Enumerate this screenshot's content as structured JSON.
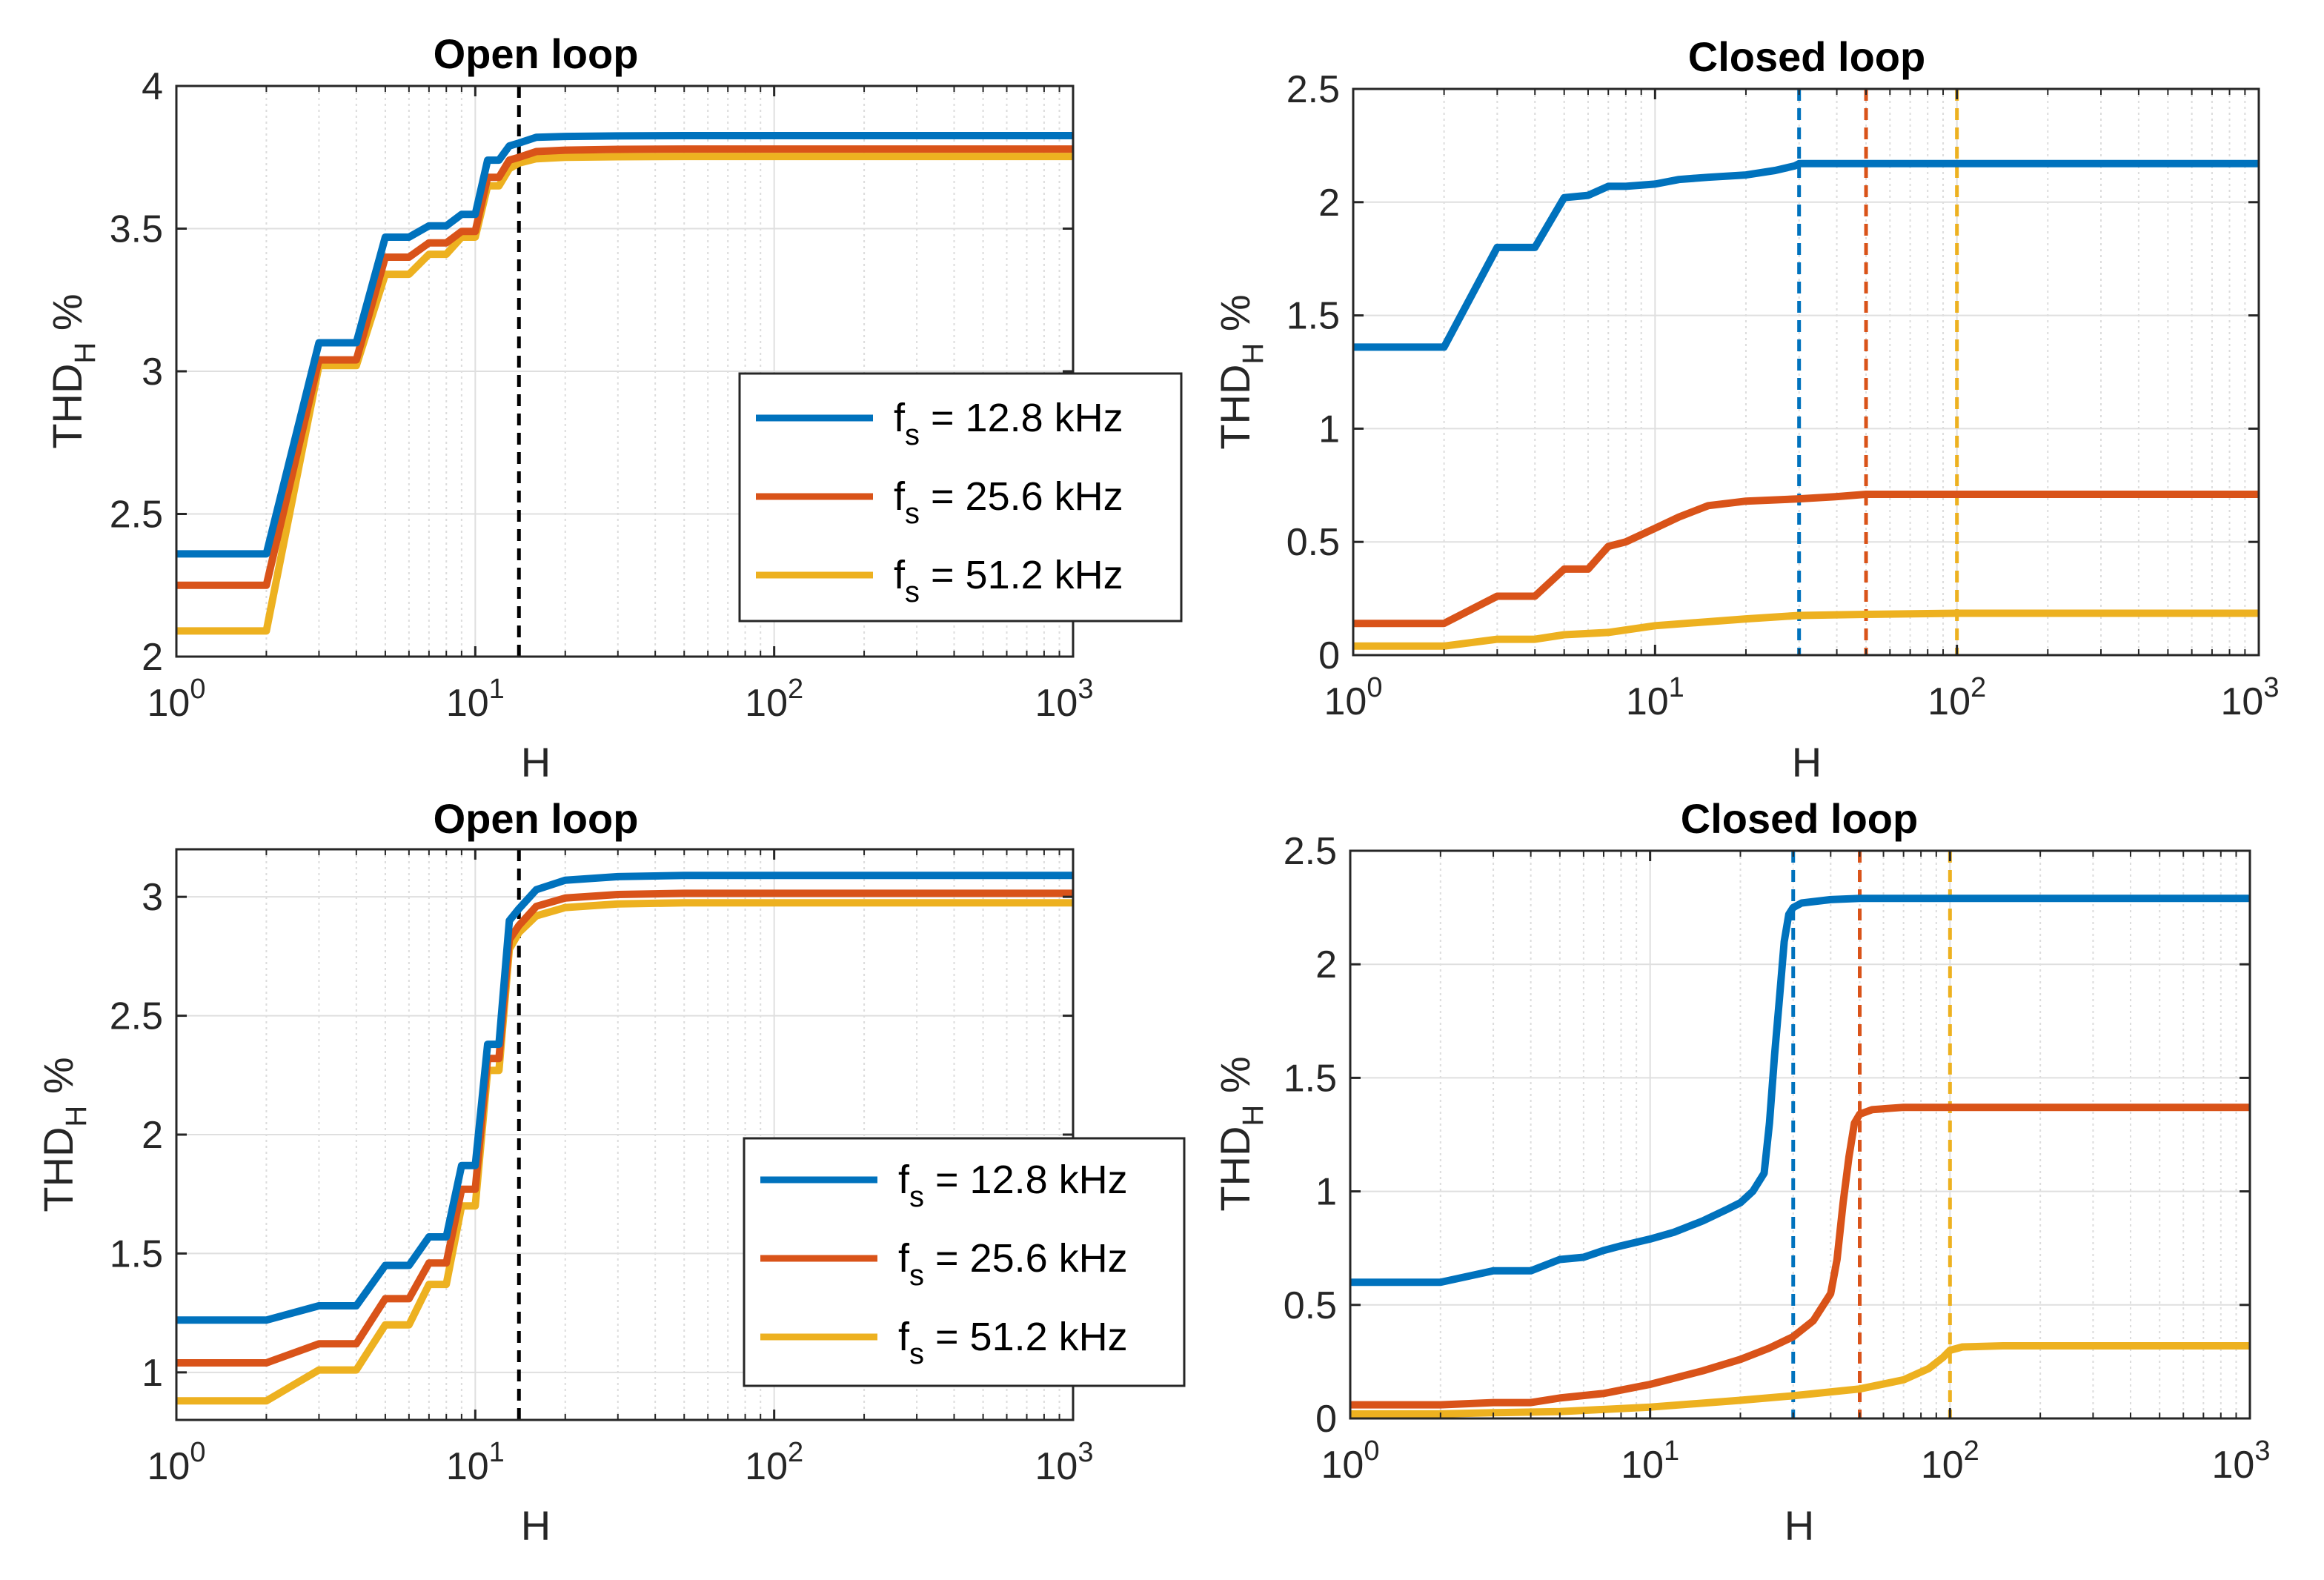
{
  "colors": {
    "fs12": "#0072BD",
    "fs25": "#D95319",
    "fs51": "#EDB120",
    "vline_open": "#000000"
  },
  "chart_data": [
    {
      "id": "open-top",
      "type": "line",
      "title": "Open loop",
      "xlabel": "H",
      "ylabel": "THD",
      "ylabel_sub": "H",
      "ylabel_suffix": " %",
      "xscale": "log",
      "xlim": [
        1,
        1000
      ],
      "ylim": [
        2,
        4
      ],
      "yticks": [
        2,
        2.5,
        3,
        3.5,
        4
      ],
      "ytick_labels": [
        "2",
        "2.5",
        "3",
        "3.5",
        "4"
      ],
      "xticks": [
        1,
        10,
        100,
        1000
      ],
      "xtick_base": "10",
      "xtick_exps": [
        "0",
        "1",
        "2",
        "3"
      ],
      "grid": true,
      "legend_position": "center-right",
      "vlines": [
        {
          "x": 14,
          "color": "#000000"
        }
      ],
      "series": [
        {
          "name": "f",
          "name_sub": "s",
          "name_rest": " = 12.8 kHz",
          "color": "#0072BD",
          "x": [
            1,
            2,
            3,
            4,
            5,
            6,
            7,
            8,
            9,
            10,
            11,
            12,
            13,
            14,
            16,
            20,
            30,
            50,
            100,
            1000
          ],
          "y": [
            2.36,
            2.36,
            3.1,
            3.1,
            3.47,
            3.47,
            3.51,
            3.51,
            3.55,
            3.55,
            3.74,
            3.74,
            3.79,
            3.8,
            3.82,
            3.823,
            3.825,
            3.826,
            3.826,
            3.826
          ]
        },
        {
          "name": "f",
          "name_sub": "s",
          "name_rest": " = 25.6 kHz",
          "color": "#D95319",
          "x": [
            1,
            2,
            3,
            4,
            5,
            6,
            7,
            8,
            9,
            10,
            11,
            12,
            13,
            14,
            16,
            20,
            30,
            50,
            100,
            1000
          ],
          "y": [
            2.25,
            2.25,
            3.04,
            3.04,
            3.4,
            3.4,
            3.45,
            3.45,
            3.49,
            3.49,
            3.68,
            3.68,
            3.74,
            3.75,
            3.77,
            3.775,
            3.778,
            3.779,
            3.779,
            3.779
          ]
        },
        {
          "name": "f",
          "name_sub": "s",
          "name_rest": " = 51.2 kHz",
          "color": "#EDB120",
          "x": [
            1,
            2,
            3,
            4,
            5,
            6,
            7,
            8,
            9,
            10,
            11,
            12,
            13,
            14,
            16,
            20,
            30,
            50,
            100,
            1000
          ],
          "y": [
            2.09,
            2.09,
            3.02,
            3.02,
            3.34,
            3.34,
            3.41,
            3.41,
            3.47,
            3.47,
            3.65,
            3.65,
            3.71,
            3.73,
            3.745,
            3.75,
            3.752,
            3.753,
            3.753,
            3.753
          ]
        }
      ]
    },
    {
      "id": "closed-top",
      "type": "line",
      "title": "Closed loop",
      "xlabel": "H",
      "ylabel": "THD",
      "ylabel_sub": "H",
      "ylabel_suffix": " %",
      "xscale": "log",
      "xlim": [
        1,
        1000
      ],
      "ylim": [
        0,
        2.5
      ],
      "yticks": [
        0,
        0.5,
        1,
        1.5,
        2,
        2.5
      ],
      "ytick_labels": [
        "0",
        "0.5",
        "1",
        "1.5",
        "2",
        "2.5"
      ],
      "xticks": [
        1,
        10,
        100,
        1000
      ],
      "xtick_base": "10",
      "xtick_exps": [
        "0",
        "1",
        "2",
        "3"
      ],
      "grid": true,
      "legend_position": "none",
      "vlines": [
        {
          "x": 30,
          "color": "#0072BD"
        },
        {
          "x": 50,
          "color": "#D95319"
        },
        {
          "x": 100,
          "color": "#EDB120"
        }
      ],
      "series": [
        {
          "name": "f",
          "name_sub": "s",
          "name_rest": " = 12.8 kHz",
          "color": "#0072BD",
          "x": [
            1,
            2,
            3,
            4,
            5,
            6,
            7,
            8,
            10,
            12,
            15,
            20,
            25,
            29,
            30,
            50,
            100,
            1000
          ],
          "y": [
            1.36,
            1.36,
            1.8,
            1.8,
            2.02,
            2.03,
            2.07,
            2.07,
            2.08,
            2.1,
            2.11,
            2.12,
            2.14,
            2.16,
            2.17,
            2.17,
            2.17,
            2.17
          ]
        },
        {
          "name": "f",
          "name_sub": "s",
          "name_rest": " = 25.6 kHz",
          "color": "#D95319",
          "x": [
            1,
            2,
            3,
            4,
            5,
            6,
            7,
            8,
            10,
            12,
            15,
            20,
            30,
            40,
            50,
            100,
            1000
          ],
          "y": [
            0.14,
            0.14,
            0.26,
            0.26,
            0.38,
            0.38,
            0.48,
            0.5,
            0.56,
            0.61,
            0.66,
            0.68,
            0.69,
            0.7,
            0.71,
            0.71,
            0.71
          ]
        },
        {
          "name": "f",
          "name_sub": "s",
          "name_rest": " = 51.2 kHz",
          "color": "#EDB120",
          "x": [
            1,
            2,
            3,
            4,
            5,
            7,
            10,
            20,
            30,
            50,
            100,
            1000
          ],
          "y": [
            0.04,
            0.04,
            0.07,
            0.07,
            0.09,
            0.1,
            0.13,
            0.16,
            0.175,
            0.18,
            0.185,
            0.185
          ]
        }
      ]
    },
    {
      "id": "open-bottom",
      "type": "line",
      "title": "Open loop",
      "xlabel": "H",
      "ylabel": "THD",
      "ylabel_sub": "H",
      "ylabel_suffix": " %",
      "xscale": "log",
      "xlim": [
        1,
        1000
      ],
      "ylim": [
        0.8,
        3.2
      ],
      "yticks": [
        1,
        1.5,
        2,
        2.5,
        3
      ],
      "ytick_labels": [
        "1",
        "1.5",
        "2",
        "2.5",
        "3"
      ],
      "xticks": [
        1,
        10,
        100,
        1000
      ],
      "xtick_base": "10",
      "xtick_exps": [
        "0",
        "1",
        "2",
        "3"
      ],
      "grid": true,
      "legend_position": "lower-right",
      "vlines": [
        {
          "x": 14,
          "color": "#000000"
        }
      ],
      "series": [
        {
          "name": "f",
          "name_sub": "s",
          "name_rest": " = 12.8 kHz",
          "color": "#0072BD",
          "x": [
            1,
            2,
            3,
            4,
            5,
            6,
            7,
            8,
            9,
            10,
            11,
            12,
            13,
            14,
            16,
            20,
            30,
            50,
            100,
            1000
          ],
          "y": [
            1.22,
            1.22,
            1.28,
            1.28,
            1.45,
            1.45,
            1.57,
            1.57,
            1.87,
            1.87,
            2.38,
            2.38,
            2.9,
            2.95,
            3.03,
            3.07,
            3.085,
            3.09,
            3.09,
            3.09
          ]
        },
        {
          "name": "f",
          "name_sub": "s",
          "name_rest": " = 25.6 kHz",
          "color": "#D95319",
          "x": [
            1,
            2,
            3,
            4,
            5,
            6,
            7,
            8,
            9,
            10,
            11,
            12,
            13,
            14,
            16,
            20,
            30,
            50,
            100,
            1000
          ],
          "y": [
            1.04,
            1.04,
            1.12,
            1.12,
            1.31,
            1.31,
            1.46,
            1.46,
            1.77,
            1.77,
            2.32,
            2.32,
            2.82,
            2.88,
            2.96,
            2.995,
            3.01,
            3.015,
            3.015,
            3.015
          ]
        },
        {
          "name": "f",
          "name_sub": "s",
          "name_rest": " = 51.2 kHz",
          "color": "#EDB120",
          "x": [
            1,
            2,
            3,
            4,
            5,
            6,
            7,
            8,
            9,
            10,
            11,
            12,
            13,
            14,
            16,
            20,
            30,
            50,
            100,
            1000
          ],
          "y": [
            0.88,
            0.88,
            1.01,
            1.01,
            1.2,
            1.2,
            1.37,
            1.37,
            1.7,
            1.7,
            2.27,
            2.27,
            2.78,
            2.85,
            2.92,
            2.955,
            2.97,
            2.975,
            2.975,
            2.975
          ]
        }
      ]
    },
    {
      "id": "closed-bottom",
      "type": "line",
      "title": "Closed loop",
      "xlabel": "H",
      "ylabel": "THD",
      "ylabel_sub": "H",
      "ylabel_suffix": " %",
      "xscale": "log",
      "xlim": [
        1,
        1000
      ],
      "ylim": [
        0,
        2.5
      ],
      "yticks": [
        0,
        0.5,
        1,
        1.5,
        2,
        2.5
      ],
      "ytick_labels": [
        "0",
        "0.5",
        "1",
        "1.5",
        "2",
        "2.5"
      ],
      "xticks": [
        1,
        10,
        100,
        1000
      ],
      "xtick_base": "10",
      "xtick_exps": [
        "0",
        "1",
        "2",
        "3"
      ],
      "grid": true,
      "legend_position": "none",
      "vlines": [
        {
          "x": 30,
          "color": "#0072BD"
        },
        {
          "x": 50,
          "color": "#D95319"
        },
        {
          "x": 100,
          "color": "#EDB120"
        }
      ],
      "series": [
        {
          "name": "f",
          "name_sub": "s",
          "name_rest": " = 12.8 kHz",
          "color": "#0072BD",
          "x": [
            1,
            2,
            3,
            4,
            5,
            6,
            7,
            8,
            10,
            12,
            15,
            18,
            20,
            22,
            24,
            25,
            26,
            27,
            28,
            29,
            30,
            32,
            40,
            50,
            100,
            1000
          ],
          "y": [
            0.6,
            0.6,
            0.65,
            0.65,
            0.7,
            0.71,
            0.74,
            0.76,
            0.79,
            0.82,
            0.87,
            0.92,
            0.95,
            1.0,
            1.08,
            1.3,
            1.6,
            1.85,
            2.1,
            2.22,
            2.25,
            2.27,
            2.285,
            2.29,
            2.29,
            2.29
          ]
        },
        {
          "name": "f",
          "name_sub": "s",
          "name_rest": " = 25.6 kHz",
          "color": "#D95319",
          "x": [
            1,
            2,
            3,
            4,
            5,
            7,
            10,
            15,
            20,
            25,
            30,
            35,
            40,
            42,
            44,
            46,
            48,
            50,
            55,
            70,
            100,
            1000
          ],
          "y": [
            0.06,
            0.06,
            0.07,
            0.07,
            0.09,
            0.11,
            0.15,
            0.21,
            0.26,
            0.31,
            0.36,
            0.43,
            0.55,
            0.7,
            0.95,
            1.15,
            1.3,
            1.34,
            1.36,
            1.37,
            1.37,
            1.37
          ]
        },
        {
          "name": "f",
          "name_sub": "s",
          "name_rest": " = 51.2 kHz",
          "color": "#EDB120",
          "x": [
            1,
            2,
            3,
            5,
            10,
            20,
            30,
            50,
            70,
            85,
            95,
            100,
            110,
            150,
            300,
            1000
          ],
          "y": [
            0.02,
            0.02,
            0.025,
            0.03,
            0.05,
            0.08,
            0.1,
            0.13,
            0.17,
            0.22,
            0.27,
            0.3,
            0.315,
            0.32,
            0.32,
            0.32
          ]
        }
      ]
    }
  ]
}
